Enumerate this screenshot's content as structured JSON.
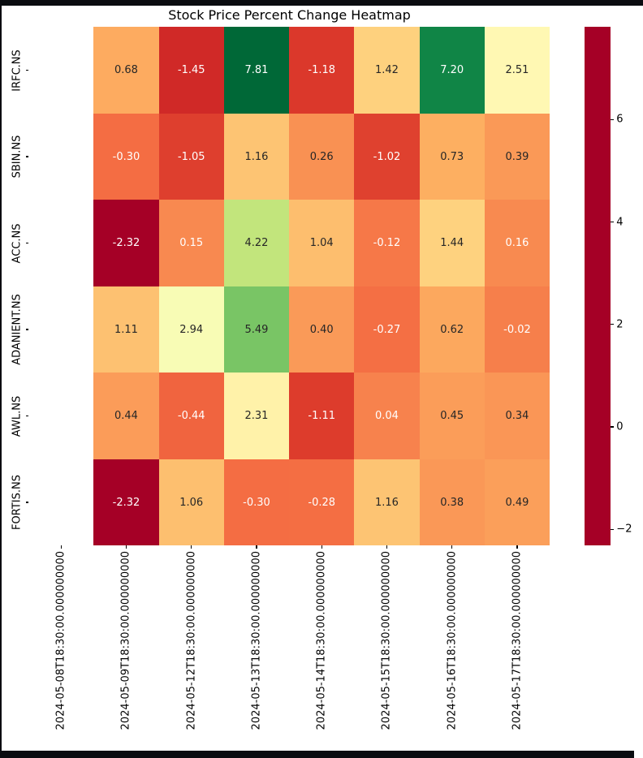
{
  "title": "Stock Price Percent Change Heatmap",
  "chart_data": {
    "type": "heatmap",
    "title": "Stock Price Percent Change Heatmap",
    "row_labels": [
      "IRFC.NS",
      "SBIN.NS",
      "ACC.NS",
      "ADANIENT.NS",
      "AWL.NS",
      "FORTIS.NS"
    ],
    "col_labels": [
      "2024-05-08T18:30:00.000000000",
      "2024-05-09T18:30:00.000000000",
      "2024-05-12T18:30:00.000000000",
      "2024-05-13T18:30:00.000000000",
      "2024-05-14T18:30:00.000000000",
      "2024-05-15T18:30:00.000000000",
      "2024-05-16T18:30:00.000000000",
      "2024-05-17T18:30:00.000000000"
    ],
    "values": [
      [
        null,
        0.68,
        -1.45,
        7.81,
        -1.18,
        1.42,
        7.2,
        2.51
      ],
      [
        null,
        -0.3,
        -1.05,
        1.16,
        0.26,
        -1.02,
        0.73,
        0.39
      ],
      [
        null,
        -2.32,
        0.15,
        4.22,
        1.04,
        -0.12,
        1.44,
        0.16
      ],
      [
        null,
        1.11,
        2.94,
        5.49,
        0.4,
        -0.27,
        0.62,
        -0.02
      ],
      [
        null,
        0.44,
        -0.44,
        2.31,
        -1.11,
        0.04,
        0.45,
        0.34
      ],
      [
        null,
        -2.32,
        1.06,
        -0.3,
        -0.28,
        1.16,
        0.38,
        0.49
      ]
    ],
    "vmin": -2.32,
    "vmax": 7.81,
    "value_decimals": 2,
    "colormap": {
      "name": "RdYlGn",
      "anchors": [
        "#a50026",
        "#d73027",
        "#f46d43",
        "#fdae61",
        "#fee08b",
        "#ffffbf",
        "#d9ef8b",
        "#a6d96a",
        "#66bd63",
        "#1a9850",
        "#006837"
      ]
    },
    "colorbar": {
      "position": "right",
      "tick_labels": [
        "6",
        "4",
        "2",
        "0",
        "−2"
      ],
      "tick_values": [
        6,
        4,
        2,
        0,
        -2
      ]
    },
    "annotation_colors": {
      "dark": "#262626",
      "light": "#ffffff"
    },
    "grid": false
  },
  "colors": {
    "background": "#ffffff",
    "frame": "#0a0c10",
    "tick": "#000000",
    "title_text": "#000000"
  }
}
